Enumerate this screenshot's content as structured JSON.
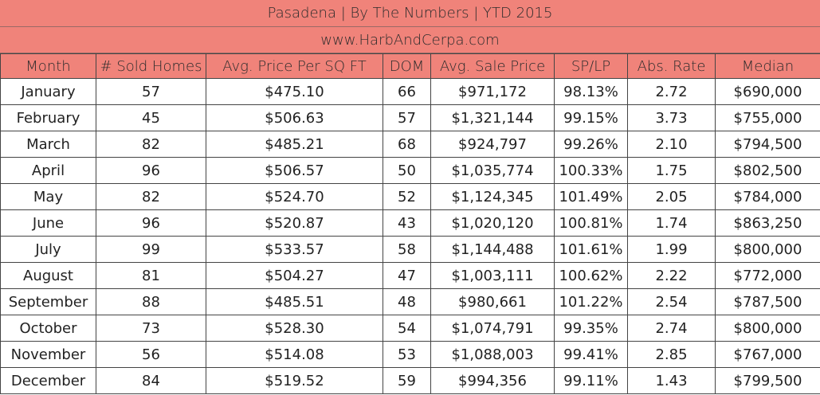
{
  "title": "Pasadena |  By The Numbers  |  YTD 2015",
  "website": "www.HarbAndCerpa.com",
  "columns": [
    "Month",
    "# Sold Homes",
    "Avg. Price Per SQ FT",
    "DOM",
    "Avg. Sale Price",
    "SP/LP",
    "Abs. Rate",
    "Median"
  ],
  "rows": [
    [
      "January",
      "57",
      "$475.10",
      "66",
      "$971,172",
      "98.13%",
      "2.72",
      "$690,000"
    ],
    [
      "February",
      "45",
      "$506.63",
      "57",
      "$1,321,144",
      "99.15%",
      "3.73",
      "$755,000"
    ],
    [
      "March",
      "82",
      "$485.21",
      "68",
      "$924,797",
      "99.26%",
      "2.10",
      "$794,500"
    ],
    [
      "April",
      "96",
      "$506.57",
      "50",
      "$1,035,774",
      "100.33%",
      "1.75",
      "$802,500"
    ],
    [
      "May",
      "82",
      "$524.70",
      "52",
      "$1,124,345",
      "101.49%",
      "2.05",
      "$784,000"
    ],
    [
      "June",
      "96",
      "$520.87",
      "43",
      "$1,020,120",
      "100.81%",
      "1.74",
      "$863,250"
    ],
    [
      "July",
      "99",
      "$533.57",
      "58",
      "$1,144,488",
      "101.61%",
      "1.99",
      "$800,000"
    ],
    [
      "August",
      "81",
      "$504.27",
      "47",
      "$1,003,111",
      "100.62%",
      "2.22",
      "$772,000"
    ],
    [
      "September",
      "88",
      "$485.51",
      "48",
      "$980,661",
      "101.22%",
      "2.54",
      "$787,500"
    ],
    [
      "October",
      "73",
      "$528.30",
      "54",
      "$1,074,791",
      "99.35%",
      "2.74",
      "$800,000"
    ],
    [
      "November",
      "56",
      "$514.08",
      "53",
      "$1,088,003",
      "99.41%",
      "2.85",
      "$767,000"
    ],
    [
      "December",
      "84",
      "$519.52",
      "59",
      "$994,356",
      "99.11%",
      "1.43",
      "$799,500"
    ]
  ]
}
